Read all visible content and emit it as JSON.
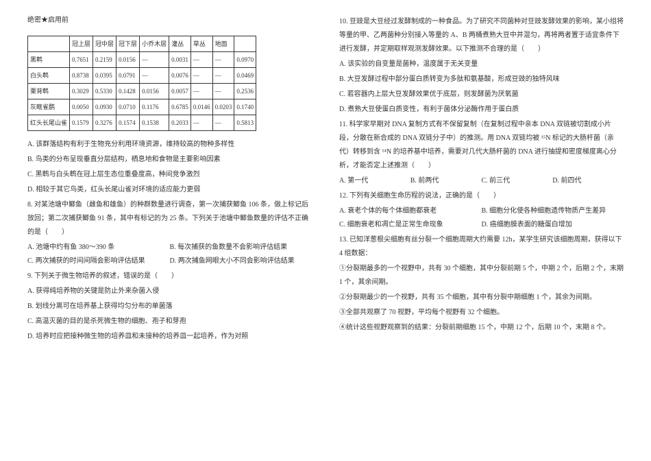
{
  "header": "绝密★启用前",
  "table": {
    "columns": [
      "",
      "冠上层",
      "冠中层",
      "冠下层",
      "小乔木层",
      "灌丛",
      "草丛",
      "地面",
      ""
    ],
    "rows": [
      [
        "黑鹎",
        "0.7651",
        "0.2159",
        "0.0156",
        "—",
        "0.0031",
        "—",
        "—",
        "0.0970"
      ],
      [
        "白头鹎",
        "0.8738",
        "0.0395",
        "0.0791",
        "—",
        "0.0076",
        "—",
        "—",
        "0.0469"
      ],
      [
        "栗背鹎",
        "0.3029",
        "0.5330",
        "0.1428",
        "0.0156",
        "0.0057",
        "—",
        "—",
        "0.2536"
      ],
      [
        "灰眶雀鹛",
        "0.0050",
        "0.0930",
        "0.0710",
        "0.1176",
        "0.6785",
        "0.0146",
        "0.0203",
        "0.1740"
      ],
      [
        "红头长尾山雀",
        "0.1579",
        "0.3276",
        "0.1574",
        "0.1538",
        "0.2033",
        "—",
        "—",
        "0.5813"
      ]
    ]
  },
  "left_statements": [
    "A. 该群落结构有利于生物充分利用环境资源，维持较高的物种多样性",
    "B. 鸟类的分布呈现垂直分层结构，栖息地和食物是主要影响因素",
    "C. 黑鹎与白头鹎在冠上层生态位重叠度高，种间竞争激烈",
    "D. 相较于其它鸟类，红头长尾山雀对环境的适应能力更弱"
  ],
  "q8": {
    "stem": "8. 对某池塘中鲫鱼（雌鱼和雄鱼）的种群数量进行调查，第一次捕获鲫鱼 106 条，做上标记后放回；第二次捕获鲫鱼 91 条，其中有标记的为 25 条。下列关于池塘中鲫鱼数量的评估不正确的是（　　）",
    "optA": "A. 池塘中约有鱼 380～390 条",
    "optB": "B. 每次捕获的鱼数量不会影响评估结果",
    "optC": "C. 两次捕获的时间间隔会影响评估结果",
    "optD": "D. 两次捕鱼网眼大小不同会影响评估结果"
  },
  "q9": {
    "stem": "9. 下列关于微生物培养的叙述，错误的是（　　）",
    "A": "A. 获得纯培养物的关键是防止外来杂菌入侵",
    "B": "B. 划线分离可在培养基上获得均匀分布的单菌落",
    "C": "C. 高温灭菌的目的是杀死微生物的细胞、孢子和芽孢",
    "D": "D. 培养时应把接种微生物的培养皿和未接种的培养皿一起培养，作为对照"
  },
  "q10": {
    "stem": "10. 豆豉是大豆经过发酵制成的一种食品。为了研究不同菌种对豆豉发酵效果的影响，某小组将等量的甲、乙两菌种分别接入等量的 A、B 两桶煮熟大豆中并混匀，再将两者置于适宜条件下进行发酵，并定期取样观测发酵效果。以下推测不合理的是（　　）",
    "A": "A. 该实验的自变量是菌种，温度属于无关变量",
    "B": "B. 大豆发酵过程中部分蛋白质转变为多肽和氨基酸，形成豆豉的独特风味",
    "C": "C. 若容器内上层大豆发酵效果优于底层，则发酵菌为厌氧菌",
    "D": "D. 煮熟大豆使蛋白质变性，有利于菌体分泌酶作用于蛋白质"
  },
  "q11": {
    "stem": "11. 科学家早期对 DNA 复制方式有不保留复制（在复制过程中亲本 DNA 双链被切割成小片段，分散在新合成的 DNA 双链分子中）的推测。用 DNA 双链均被 ¹⁵N 标记的大肠杆菌（亲代）转移到含 ¹⁴N 的培养基中培养，需要对几代大肠杆菌的 DNA 进行抽提和密度梯度离心分析，才能否定上述推测（　　）",
    "optA": "A. 第一代",
    "optB": "B. 前两代",
    "optC": "C. 前三代",
    "optD": "D. 前四代"
  },
  "q12": {
    "stem": "12. 下列有关细胞生命历程的说法，正确的是（　　）",
    "optA": "A. 衰老个体的每个体细胞都衰老",
    "optB": "B. 细胞分化使各种细胞遗传物质产生差异",
    "optC": "C. 细胞衰老和凋亡是正常生命现象",
    "optD": "D. 癌细胞膜表面的糖蛋白增加"
  },
  "q13": {
    "stem": "13. 已知洋葱根尖细胞有丝分裂一个细胞周期大约需要 12h，某学生研究该细胞周期，获得以下 4 组数据：",
    "l1": "①分裂期最多的一个视野中，共有 30 个细胞，其中分裂前期 5 个，中期 2 个，后期 2 个，末期 1 个，其余间期。",
    "l2": "②分裂期最少的一个视野，共有 35 个细胞，其中有分裂中期细胞 1 个，其余为间期。",
    "l3": "③全部共观察了 70 视野，平均每个视野有 32 个细胞。",
    "l4": "④统计这些视野观察到的结果：分裂前期细胞 15 个，中期 12 个，后期 10 个，末期 8 个。"
  }
}
